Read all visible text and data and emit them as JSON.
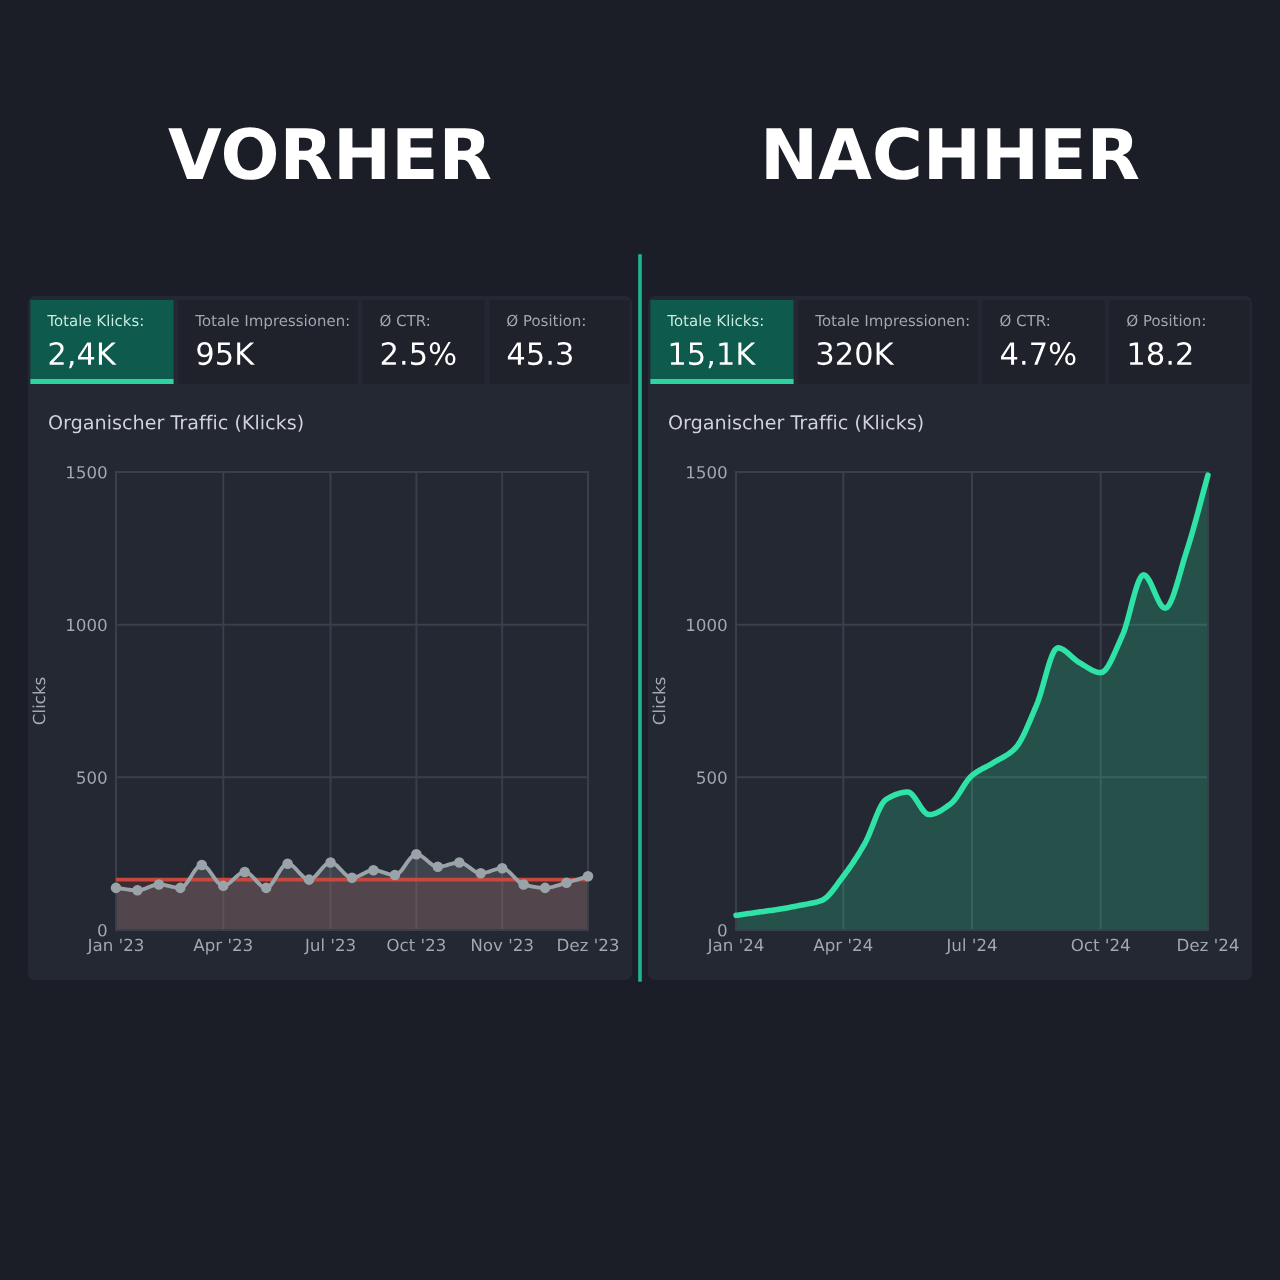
{
  "chart_data": [
    {
      "type": "other",
      "title": "VORHER",
      "annotations": [
        "Totale Klicks:",
        "2,4K",
        "Totale Impressionen:",
        "95K",
        "Ø CTR:",
        "2.5%",
        "Ø Position:",
        "45.3"
      ]
    },
    {
      "type": "area",
      "title": "Organischer Traffic (Klicks)",
      "ylabel": "Clicks",
      "categories": [
        "Jan '23",
        null,
        null,
        null,
        null,
        "Apr '23",
        null,
        null,
        null,
        null,
        "Jul '23",
        null,
        null,
        null,
        "Oct '23",
        null,
        null,
        null,
        "Nov '23",
        null,
        null,
        null,
        "Dez '23"
      ],
      "series": [
        {
          "color": "#9aa4a8",
          "values": [
            138,
            130,
            149,
            138,
            213,
            145,
            190,
            138,
            217,
            165,
            221,
            171,
            196,
            180,
            248,
            207,
            221,
            186,
            202,
            149,
            138,
            155,
            176
          ]
        }
      ],
      "ylim": [
        0,
        1500
      ],
      "yticks": [
        0,
        500,
        1000,
        1500
      ],
      "grid": true,
      "marker": "circle",
      "ref_lines": [
        {
          "axis": "y",
          "value": 165,
          "color": "#c8483e"
        }
      ],
      "bands": [
        {
          "axis": "y",
          "from": 0,
          "to": 165,
          "color": "#7d3535"
        }
      ]
    },
    {
      "type": "other",
      "title": "NACHHER",
      "annotations": [
        "Totale Klicks:",
        "15,1K",
        "Totale Impressionen:",
        "320K",
        "Ø CTR:",
        "4.7%",
        "Ø Position:",
        "18.2"
      ]
    },
    {
      "type": "area",
      "title": "Organischer Traffic (Klicks)",
      "ylabel": "Clicks",
      "categories": [
        "Jan '24",
        null,
        null,
        null,
        null,
        "Apr '24",
        null,
        null,
        null,
        null,
        null,
        "Jul '24",
        null,
        null,
        null,
        null,
        null,
        "Oct '24",
        null,
        null,
        null,
        null,
        "Dez '24"
      ],
      "series": [
        {
          "color": "#2fe3a6",
          "values": [
            48,
            58,
            68,
            81,
            97,
            176,
            283,
            428,
            452,
            378,
            413,
            506,
            548,
            594,
            735,
            924,
            876,
            843,
            963,
            1163,
            1054,
            1240,
            1490
          ]
        }
      ],
      "ylim": [
        0,
        1500
      ],
      "yticks": [
        0,
        500,
        1000,
        1500
      ],
      "grid": true,
      "marker": "none"
    }
  ]
}
